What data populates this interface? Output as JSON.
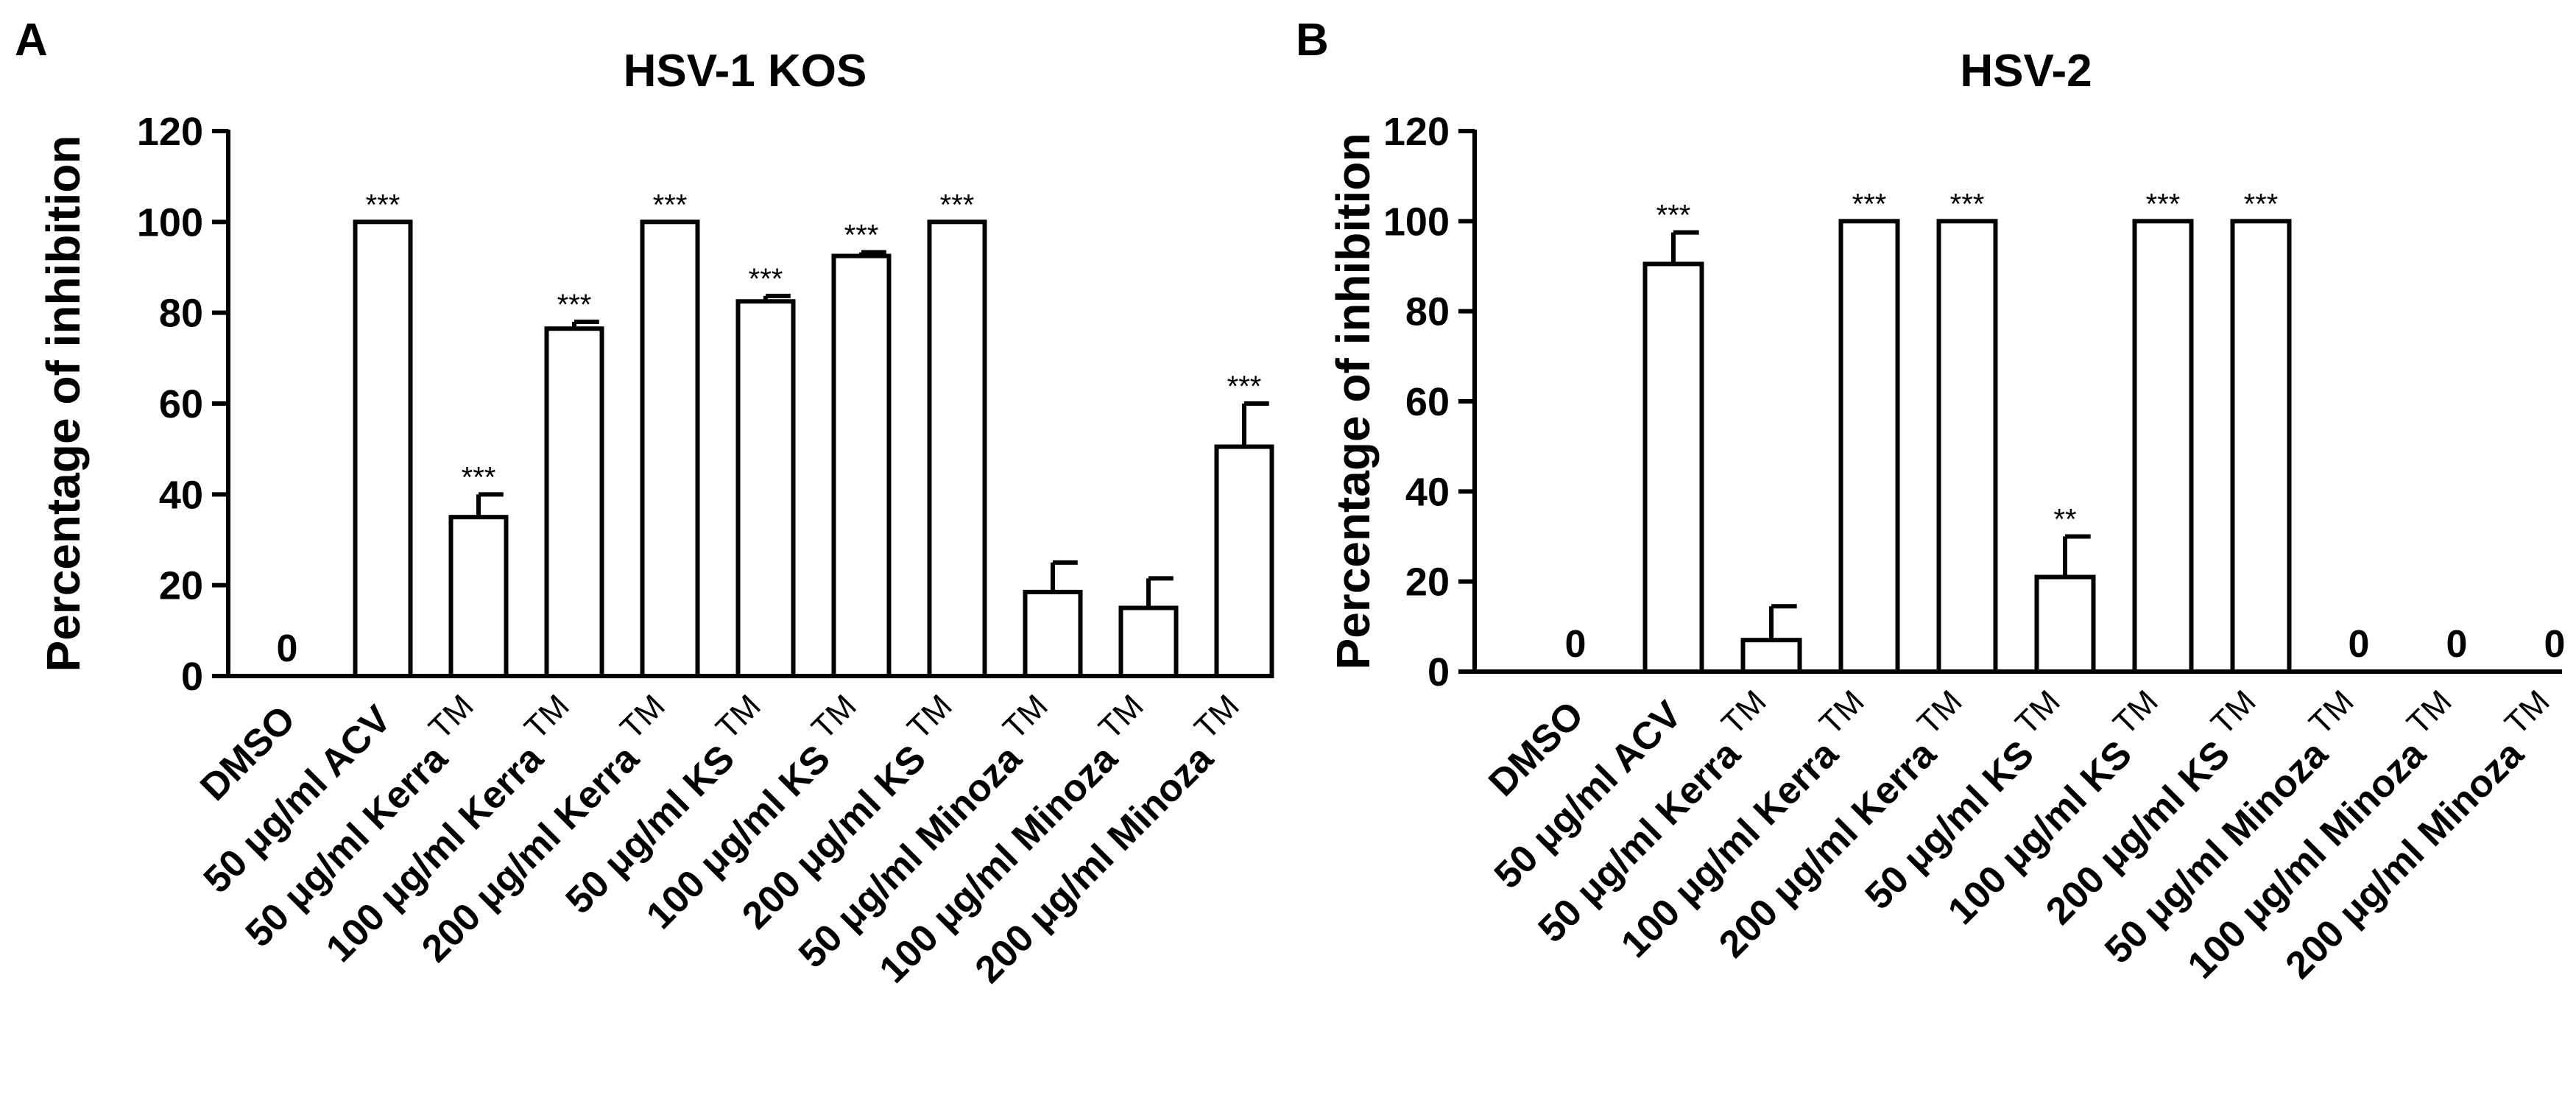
{
  "chart_data": [
    {
      "type": "bar",
      "panel": "A",
      "title": "HSV-1 KOS",
      "xlabel": "",
      "ylabel": "Percentage of inhibition",
      "ylim": [
        0,
        120
      ],
      "yticks": [
        "0",
        "20",
        "40",
        "60",
        "80",
        "100",
        "120"
      ],
      "categories": [
        {
          "main": "DMSO",
          "sup": ""
        },
        {
          "main": "50 μg/ml ACV",
          "sup": ""
        },
        {
          "main": "50 μg/ml Kerra",
          "sup": "TM"
        },
        {
          "main": "100 μg/ml Kerra",
          "sup": "TM"
        },
        {
          "main": "200 μg/ml Kerra",
          "sup": "TM"
        },
        {
          "main": "50 μg/ml KS",
          "sup": "TM"
        },
        {
          "main": "100 μg/ml KS",
          "sup": "TM"
        },
        {
          "main": "200 μg/ml KS",
          "sup": "TM"
        },
        {
          "main": "50 μg/ml Minoza",
          "sup": "TM"
        },
        {
          "main": "100 μg/ml Minoza",
          "sup": "TM"
        },
        {
          "main": "200 μg/ml Minoza",
          "sup": "TM"
        }
      ],
      "values": [
        0,
        100,
        35,
        76.5,
        100,
        82.5,
        92.5,
        100,
        18.5,
        15,
        50.5
      ],
      "errors": [
        0,
        0,
        5,
        1.5,
        0,
        1.2,
        0.8,
        0,
        6.5,
        6.5,
        9.5
      ],
      "annotations": [
        "0",
        "***",
        "***",
        "***",
        "***",
        "***",
        "***",
        "***",
        "",
        "",
        "***"
      ]
    },
    {
      "type": "bar",
      "panel": "B",
      "title": "HSV-2",
      "xlabel": "",
      "ylabel": "Percentage of inhibition",
      "ylim": [
        0,
        120
      ],
      "yticks": [
        "0",
        "20",
        "40",
        "60",
        "80",
        "100",
        "120"
      ],
      "categories": [
        {
          "main": "DMSO",
          "sup": ""
        },
        {
          "main": "50 μg/ml ACV",
          "sup": ""
        },
        {
          "main": "50 μg/ml Kerra",
          "sup": "TM"
        },
        {
          "main": "100 μg/ml Kerra",
          "sup": "TM"
        },
        {
          "main": "200 μg/ml Kerra",
          "sup": "TM"
        },
        {
          "main": "50 μg/ml KS",
          "sup": "TM"
        },
        {
          "main": "100 μg/ml KS",
          "sup": "TM"
        },
        {
          "main": "200 μg/ml KS",
          "sup": "TM"
        },
        {
          "main": "50 μg/ml Minoza",
          "sup": "TM"
        },
        {
          "main": "100 μg/ml Minoza",
          "sup": "TM"
        },
        {
          "main": "200 μg/ml Minoza",
          "sup": "TM"
        }
      ],
      "values": [
        0,
        90.5,
        7,
        100,
        100,
        21,
        100,
        100,
        0,
        0,
        0
      ],
      "errors": [
        0,
        7,
        7.5,
        0,
        0,
        9,
        0,
        0,
        0,
        0,
        0
      ],
      "annotations": [
        "0",
        "***",
        "",
        "***",
        "***",
        "**",
        "***",
        "***",
        "0",
        "0",
        "0"
      ]
    }
  ]
}
